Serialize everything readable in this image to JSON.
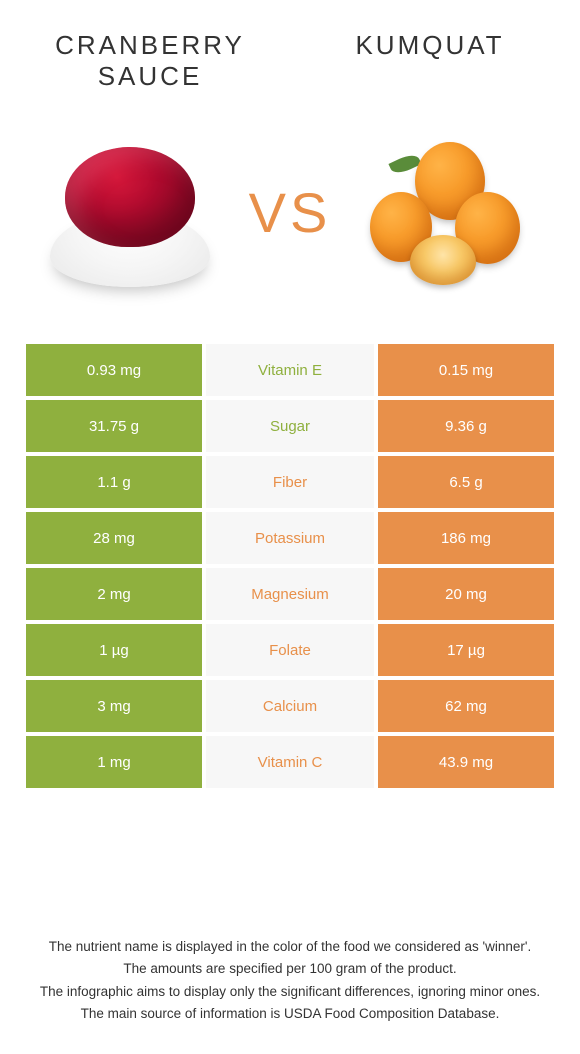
{
  "colors": {
    "left": "#8fb03e",
    "right": "#e8904a",
    "mid_bg": "#f7f7f7"
  },
  "header": {
    "left_title": "Cranberry sauce",
    "right_title": "Kumquat",
    "vs": "VS"
  },
  "rows": [
    {
      "nutrient": "Vitamin E",
      "left": "0.93 mg",
      "right": "0.15 mg",
      "winner": "left"
    },
    {
      "nutrient": "Sugar",
      "left": "31.75 g",
      "right": "9.36 g",
      "winner": "left"
    },
    {
      "nutrient": "Fiber",
      "left": "1.1 g",
      "right": "6.5 g",
      "winner": "right"
    },
    {
      "nutrient": "Potassium",
      "left": "28 mg",
      "right": "186 mg",
      "winner": "right"
    },
    {
      "nutrient": "Magnesium",
      "left": "2 mg",
      "right": "20 mg",
      "winner": "right"
    },
    {
      "nutrient": "Folate",
      "left": "1 µg",
      "right": "17 µg",
      "winner": "right"
    },
    {
      "nutrient": "Calcium",
      "left": "3 mg",
      "right": "62 mg",
      "winner": "right"
    },
    {
      "nutrient": "Vitamin C",
      "left": "1 mg",
      "right": "43.9 mg",
      "winner": "right"
    }
  ],
  "footer": [
    "The nutrient name is displayed in the color of the food we considered as 'winner'.",
    "The amounts are specified per 100 gram of the product.",
    "The infographic aims to display only the significant differences, ignoring minor ones.",
    "The main source of information is USDA Food Composition Database."
  ]
}
